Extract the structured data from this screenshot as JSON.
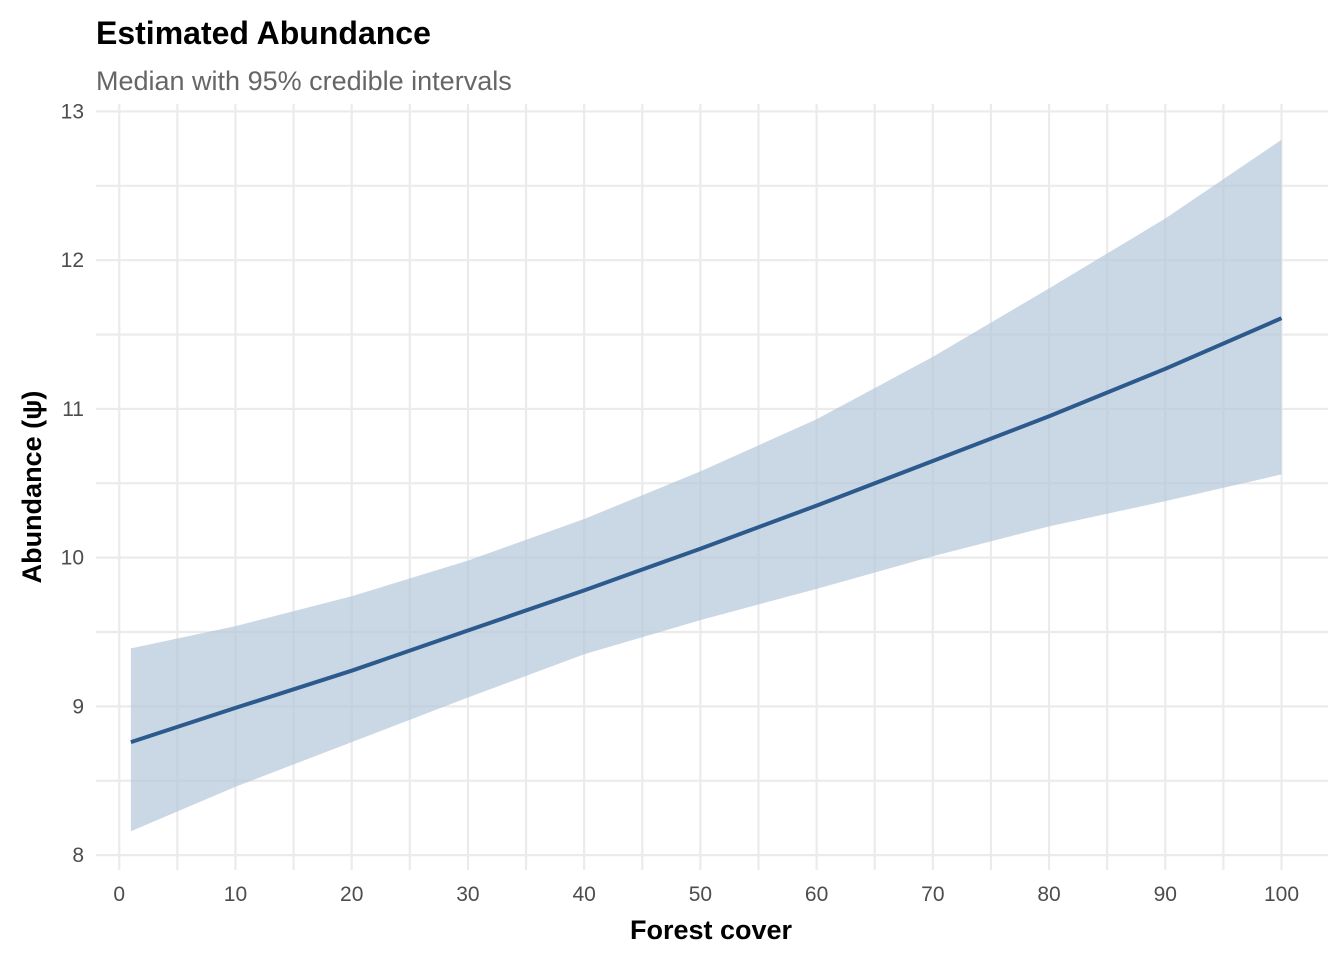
{
  "chart_data": {
    "type": "line",
    "title": "Estimated Abundance",
    "subtitle": "Median with 95% credible intervals",
    "xlabel": "Forest cover",
    "ylabel": "Abundance (ψ)",
    "xlim": [
      -2,
      104
    ],
    "ylim": [
      7.9,
      13.05
    ],
    "x_ticks": [
      0,
      10,
      20,
      30,
      40,
      50,
      60,
      70,
      80,
      90,
      100
    ],
    "y_ticks": [
      8,
      9,
      10,
      11,
      12,
      13
    ],
    "grid": true,
    "legend": "none",
    "colors": {
      "line": "#2c5a8c",
      "ribbon": "#b4c6da"
    },
    "series": [
      {
        "x": [
          1,
          10,
          20,
          30,
          40,
          50,
          60,
          70,
          80,
          90,
          100
        ],
        "median": [
          8.76,
          8.99,
          9.24,
          9.51,
          9.78,
          10.06,
          10.35,
          10.65,
          10.95,
          11.27,
          11.61
        ],
        "lower": [
          8.16,
          8.46,
          8.76,
          9.06,
          9.35,
          9.58,
          9.79,
          10.01,
          10.21,
          10.38,
          10.56
        ],
        "upper": [
          9.39,
          9.54,
          9.74,
          9.98,
          10.26,
          10.58,
          10.93,
          11.35,
          11.81,
          12.28,
          12.81
        ]
      }
    ]
  }
}
